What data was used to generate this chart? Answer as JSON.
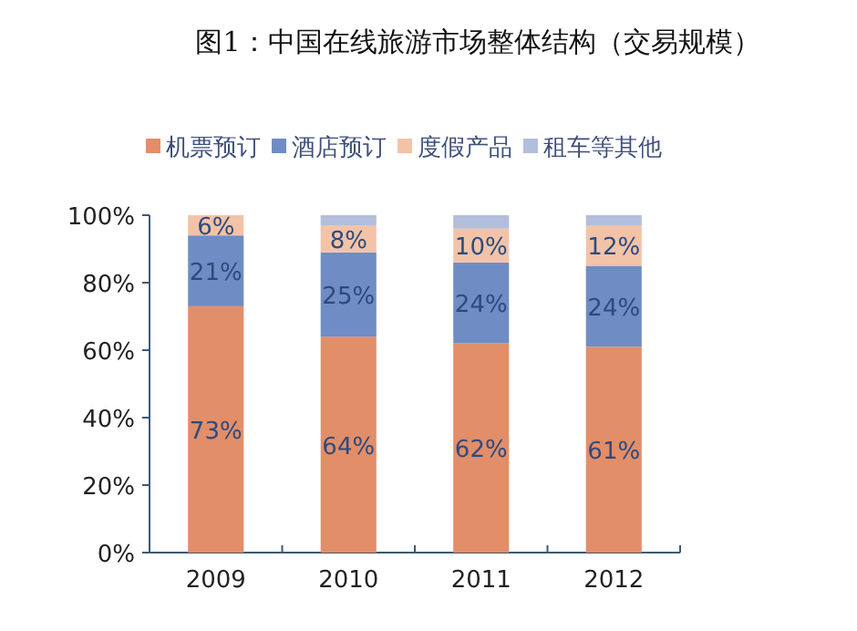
{
  "chart_data": {
    "type": "bar",
    "stacked": true,
    "title": "图1：中国在线旅游市场整体结构（交易规模）",
    "categories": [
      "2009",
      "2010",
      "2011",
      "2012"
    ],
    "series": [
      {
        "name": "机票预订",
        "color": "#e28e69",
        "values": [
          73,
          64,
          62,
          61
        ],
        "value_labels": [
          "73%",
          "64%",
          "62%",
          "61%"
        ]
      },
      {
        "name": "酒店预订",
        "color": "#6f8dc4",
        "values": [
          21,
          25,
          24,
          24
        ],
        "value_labels": [
          "21%",
          "25%",
          "24%",
          "24%"
        ]
      },
      {
        "name": "度假产品",
        "color": "#f3c3a8",
        "values": [
          6,
          8,
          10,
          12
        ],
        "value_labels": [
          "6%",
          "8%",
          "10%",
          "12%"
        ]
      },
      {
        "name": "租车等其他",
        "color": "#b3bedb",
        "values": [
          0,
          3,
          4,
          3
        ]
      }
    ],
    "ylim": [
      0,
      100
    ],
    "yticks": [
      {
        "value": 0,
        "label": "0%"
      },
      {
        "value": 20,
        "label": "20%"
      },
      {
        "value": 40,
        "label": "40%"
      },
      {
        "value": 60,
        "label": "60%"
      },
      {
        "value": 80,
        "label": "80%"
      },
      {
        "value": 100,
        "label": "100%"
      }
    ],
    "legend": "top"
  }
}
